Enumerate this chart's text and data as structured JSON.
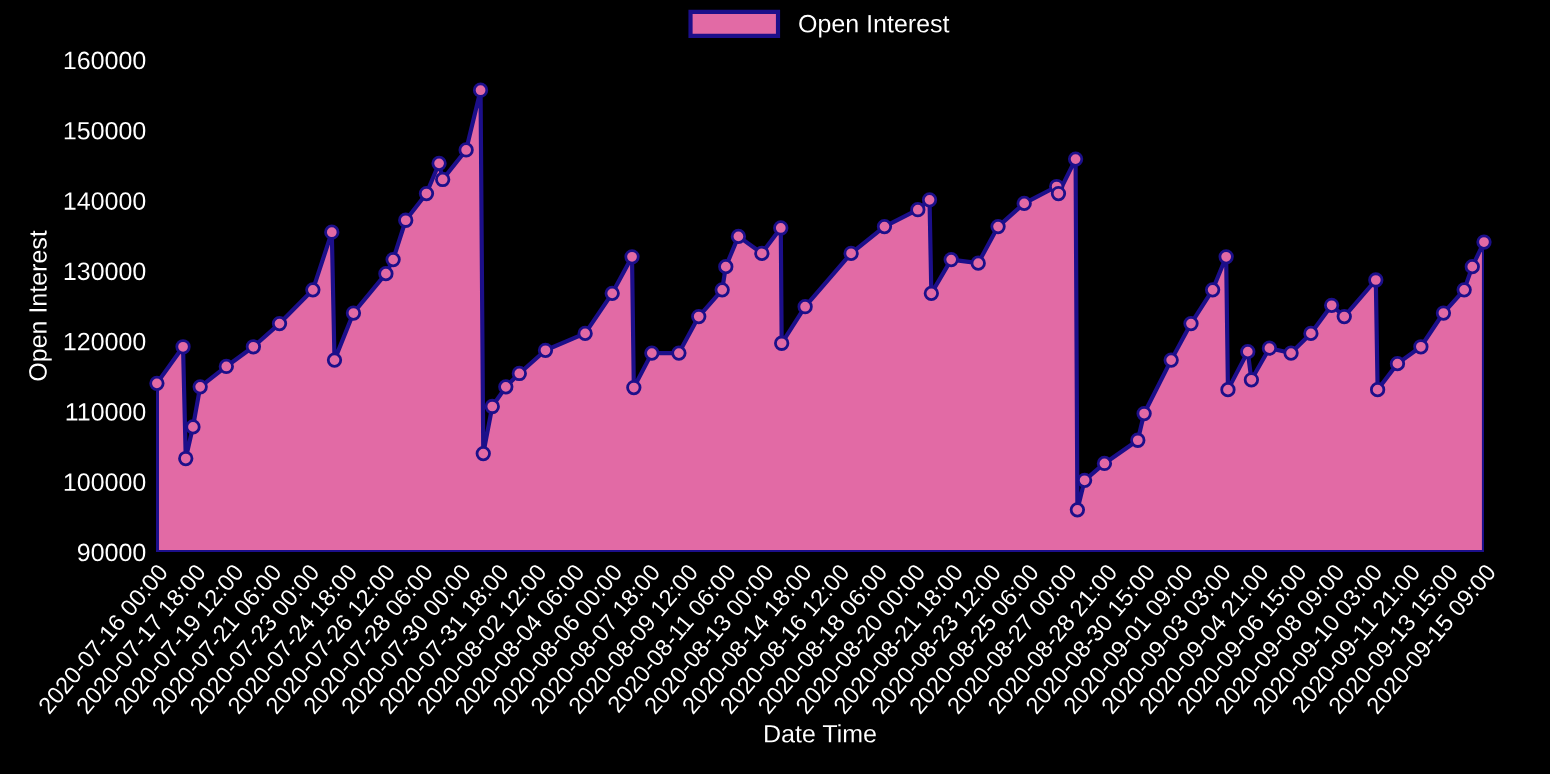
{
  "chart_data": {
    "type": "area",
    "xlabel": "Date Time",
    "ylabel": "Open Interest",
    "legend": "top",
    "grid": false,
    "marker": "circle",
    "line_style": "solid",
    "ylim": [
      90000,
      160000
    ],
    "yticks": [
      90000,
      100000,
      110000,
      120000,
      130000,
      140000,
      150000,
      160000
    ],
    "xlim": [
      "2020-07-16T00:00",
      "2020-09-15T09:00"
    ],
    "xticks": [
      {
        "value": "2020-07-16T00:00",
        "label": "2020-07-16 00:00"
      },
      {
        "value": "2020-07-17T18:00",
        "label": "2020-07-17 18:00"
      },
      {
        "value": "2020-07-19T12:00",
        "label": "2020-07-19 12:00"
      },
      {
        "value": "2020-07-21T06:00",
        "label": "2020-07-21 06:00"
      },
      {
        "value": "2020-07-23T00:00",
        "label": "2020-07-23 00:00"
      },
      {
        "value": "2020-07-24T18:00",
        "label": "2020-07-24 18:00"
      },
      {
        "value": "2020-07-26T12:00",
        "label": "2020-07-26 12:00"
      },
      {
        "value": "2020-07-28T06:00",
        "label": "2020-07-28 06:00"
      },
      {
        "value": "2020-07-30T00:00",
        "label": "2020-07-30 00:00"
      },
      {
        "value": "2020-07-31T18:00",
        "label": "2020-07-31 18:00"
      },
      {
        "value": "2020-08-02T12:00",
        "label": "2020-08-02 12:00"
      },
      {
        "value": "2020-08-04T06:00",
        "label": "2020-08-04 06:00"
      },
      {
        "value": "2020-08-06T00:00",
        "label": "2020-08-06 00:00"
      },
      {
        "value": "2020-08-07T18:00",
        "label": "2020-08-07 18:00"
      },
      {
        "value": "2020-08-09T12:00",
        "label": "2020-08-09 12:00"
      },
      {
        "value": "2020-08-11T06:00",
        "label": "2020-08-11 06:00"
      },
      {
        "value": "2020-08-13T00:00",
        "label": "2020-08-13 00:00"
      },
      {
        "value": "2020-08-14T18:00",
        "label": "2020-08-14 18:00"
      },
      {
        "value": "2020-08-16T12:00",
        "label": "2020-08-16 12:00"
      },
      {
        "value": "2020-08-18T06:00",
        "label": "2020-08-18 06:00"
      },
      {
        "value": "2020-08-20T00:00",
        "label": "2020-08-20 00:00"
      },
      {
        "value": "2020-08-21T18:00",
        "label": "2020-08-21 18:00"
      },
      {
        "value": "2020-08-23T12:00",
        "label": "2020-08-23 12:00"
      },
      {
        "value": "2020-08-25T06:00",
        "label": "2020-08-25 06:00"
      },
      {
        "value": "2020-08-27T00:00",
        "label": "2020-08-27 00:00"
      },
      {
        "value": "2020-08-28T21:00",
        "label": "2020-08-28 21:00"
      },
      {
        "value": "2020-08-30T15:00",
        "label": "2020-08-30 15:00"
      },
      {
        "value": "2020-09-01T09:00",
        "label": "2020-09-01 09:00"
      },
      {
        "value": "2020-09-03T03:00",
        "label": "2020-09-03 03:00"
      },
      {
        "value": "2020-09-04T21:00",
        "label": "2020-09-04 21:00"
      },
      {
        "value": "2020-09-06T15:00",
        "label": "2020-09-06 15:00"
      },
      {
        "value": "2020-09-08T09:00",
        "label": "2020-09-08 09:00"
      },
      {
        "value": "2020-09-10T03:00",
        "label": "2020-09-10 03:00"
      },
      {
        "value": "2020-09-11T21:00",
        "label": "2020-09-11 21:00"
      },
      {
        "value": "2020-09-13T15:00",
        "label": "2020-09-13 15:00"
      },
      {
        "value": "2020-09-15T09:00",
        "label": "2020-09-15 09:00"
      }
    ],
    "series": [
      {
        "name": "Open Interest",
        "color": "#e26aa5",
        "x": [
          "2020-07-16T01:00",
          "2020-07-17T06:00",
          "2020-07-17T09:00",
          "2020-07-17T17:00",
          "2020-07-18T01:00",
          "2020-07-19T06:00",
          "2020-07-20T12:00",
          "2020-07-21T17:00",
          "2020-07-23T06:00",
          "2020-07-24T03:00",
          "2020-07-24T06:00",
          "2020-07-25T03:00",
          "2020-07-26T15:00",
          "2020-07-26T23:00",
          "2020-07-27T13:00",
          "2020-07-28T12:00",
          "2020-07-29T02:00",
          "2020-07-29T06:00",
          "2020-07-30T08:00",
          "2020-07-31T00:00",
          "2020-07-31T03:00",
          "2020-07-31T13:00",
          "2020-08-01T04:00",
          "2020-08-01T19:00",
          "2020-08-03T00:00",
          "2020-08-04T20:00",
          "2020-08-06T02:00",
          "2020-08-07T00:00",
          "2020-08-07T02:00",
          "2020-08-07T22:00",
          "2020-08-09T04:00",
          "2020-08-10T02:00",
          "2020-08-11T04:00",
          "2020-08-11T08:00",
          "2020-08-11T22:00",
          "2020-08-13T00:00",
          "2020-08-13T21:00",
          "2020-08-13T22:00",
          "2020-08-15T00:00",
          "2020-08-17T03:00",
          "2020-08-18T16:00",
          "2020-08-20T05:00",
          "2020-08-20T18:00",
          "2020-08-20T20:00",
          "2020-08-21T18:00",
          "2020-08-23T00:00",
          "2020-08-23T22:00",
          "2020-08-25T03:00",
          "2020-08-26T15:00",
          "2020-08-26T17:00",
          "2020-08-27T12:00",
          "2020-08-27T14:00",
          "2020-08-27T22:00",
          "2020-08-28T20:00",
          "2020-08-30T09:00",
          "2020-08-30T16:00",
          "2020-08-31T22:00",
          "2020-09-01T20:00",
          "2020-09-02T20:00",
          "2020-09-03T11:00",
          "2020-09-03T13:00",
          "2020-09-04T11:00",
          "2020-09-04T15:00",
          "2020-09-05T11:00",
          "2020-09-06T11:00",
          "2020-09-07T09:00",
          "2020-09-08T08:00",
          "2020-09-08T22:00",
          "2020-09-10T09:00",
          "2020-09-10T11:00",
          "2020-09-11T09:00",
          "2020-09-12T11:00",
          "2020-09-13T12:00",
          "2020-09-14T11:00",
          "2020-09-14T20:00",
          "2020-09-15T09:00"
        ],
        "values": [
          114000,
          119200,
          103300,
          107800,
          113500,
          116400,
          119200,
          122500,
          127300,
          135500,
          117300,
          124000,
          129600,
          131600,
          137200,
          141000,
          145300,
          143000,
          147200,
          155700,
          104000,
          110700,
          113500,
          115400,
          118700,
          121100,
          126800,
          132000,
          113400,
          118300,
          118300,
          123500,
          127300,
          130600,
          134900,
          132500,
          136100,
          119700,
          124900,
          132500,
          136300,
          138700,
          140100,
          126800,
          131600,
          131100,
          136300,
          139600,
          142000,
          141000,
          145900,
          96000,
          100200,
          102600,
          105900,
          109700,
          117300,
          122500,
          127300,
          132000,
          113100,
          118500,
          114500,
          119000,
          118300,
          121100,
          125100,
          123500,
          128700,
          113100,
          116800,
          119200,
          124000,
          127300,
          130600,
          134100
        ]
      }
    ]
  }
}
